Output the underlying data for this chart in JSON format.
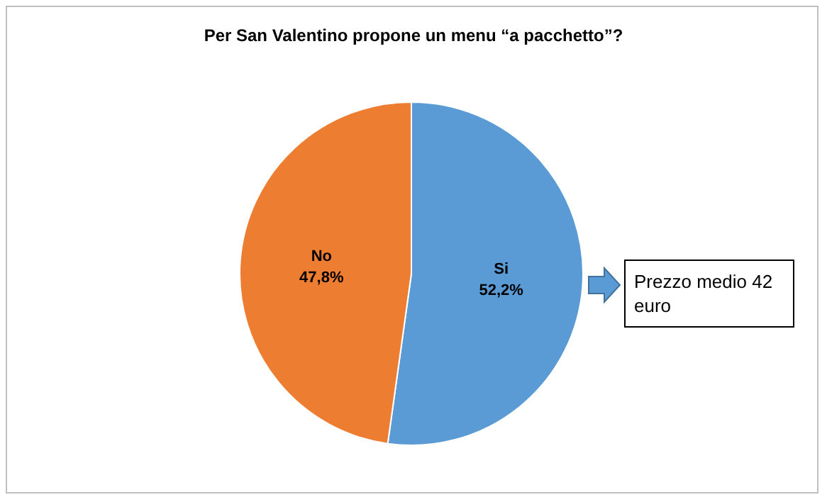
{
  "chart_data": {
    "type": "pie",
    "title": "Per San Valentino propone un menu “a pacchetto”?",
    "categories": [
      "Si",
      "No"
    ],
    "values": [
      52.2,
      47.8
    ],
    "colors": [
      "#5b9bd5",
      "#ed7d31"
    ],
    "value_labels": [
      "52,2%",
      "47,8%"
    ],
    "legend": false,
    "annotations": [
      "Prezzo medio 42 euro"
    ]
  }
}
